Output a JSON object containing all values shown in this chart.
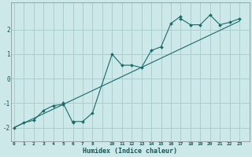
{
  "xlabel": "Humidex (Indice chaleur)",
  "bg_color": "#cce8e8",
  "grid_color": "#aacfcf",
  "line_color": "#1a6b6b",
  "scatter_x": [
    0,
    1,
    2,
    3,
    4,
    5,
    5,
    6,
    6,
    7,
    8,
    10,
    11,
    12,
    13,
    14,
    15,
    16,
    17,
    17,
    18,
    19,
    20,
    21,
    22,
    23
  ],
  "scatter_y": [
    -2.0,
    -1.8,
    -1.7,
    -1.3,
    -1.1,
    -1.05,
    -1.0,
    -1.8,
    -1.75,
    -1.75,
    -1.4,
    1.0,
    0.55,
    0.55,
    0.45,
    1.15,
    1.3,
    2.25,
    2.55,
    2.45,
    2.2,
    2.2,
    2.6,
    2.2,
    2.3,
    2.45
  ],
  "trend_x": [
    0,
    23
  ],
  "trend_y": [
    -2.0,
    2.35
  ],
  "ytick_vals": [
    -2,
    -1,
    0,
    1,
    2
  ],
  "xtick_positions": [
    0,
    1,
    2,
    3,
    4,
    5,
    6,
    7,
    8,
    10,
    11,
    12,
    13,
    14,
    15,
    16,
    17,
    18,
    19,
    20,
    21,
    22,
    23
  ],
  "xtick_labels": [
    "0",
    "1",
    "2",
    "3",
    "4",
    "5",
    "6",
    "7",
    "8",
    "10",
    "11",
    "12",
    "13",
    "14",
    "15",
    "16",
    "17",
    "18",
    "19",
    "20",
    "21",
    "22",
    "23"
  ],
  "ylim": [
    -2.55,
    3.1
  ],
  "xlim": [
    -0.3,
    24.0
  ]
}
